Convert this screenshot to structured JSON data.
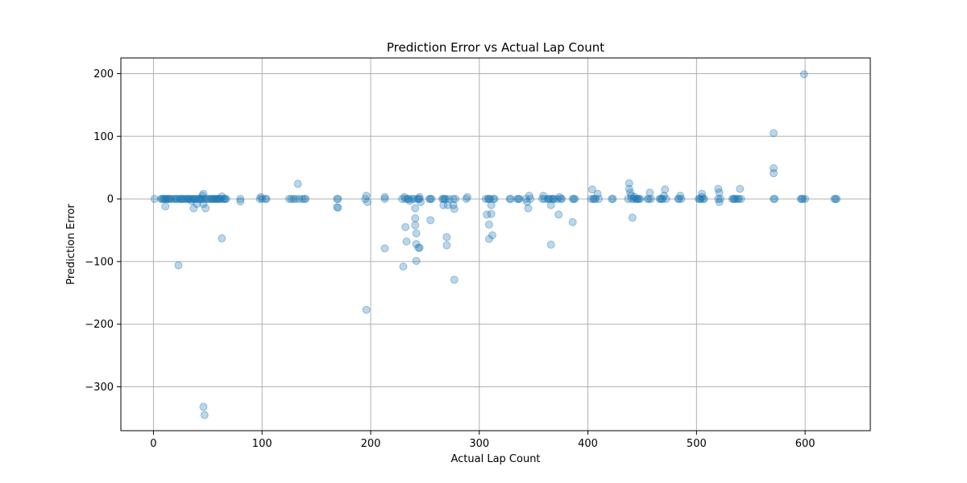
{
  "chart_data": {
    "type": "scatter",
    "title": "Prediction Error vs Actual Lap Count",
    "xlabel": "Actual Lap Count",
    "ylabel": "Prediction Error",
    "xlim": [
      -30,
      660
    ],
    "ylim": [
      -370,
      225
    ],
    "xticks": [
      0,
      100,
      200,
      300,
      400,
      500,
      600
    ],
    "yticks": [
      -300,
      -200,
      -100,
      0,
      100,
      200
    ],
    "grid": true,
    "point_color": "#1f77b4",
    "point_opacity": 0.3,
    "points": [
      [
        1,
        0
      ],
      [
        7,
        0
      ],
      [
        8,
        0
      ],
      [
        9,
        0
      ],
      [
        10,
        0
      ],
      [
        11,
        0
      ],
      [
        11,
        -12
      ],
      [
        12,
        0
      ],
      [
        13,
        0
      ],
      [
        14,
        0
      ],
      [
        15,
        0
      ],
      [
        16,
        0
      ],
      [
        18,
        0
      ],
      [
        20,
        0
      ],
      [
        21,
        0
      ],
      [
        22,
        0
      ],
      [
        23,
        -106
      ],
      [
        24,
        0
      ],
      [
        25,
        0
      ],
      [
        26,
        0
      ],
      [
        27,
        0
      ],
      [
        28,
        0
      ],
      [
        30,
        0
      ],
      [
        31,
        0
      ],
      [
        32,
        0
      ],
      [
        33,
        0
      ],
      [
        34,
        0
      ],
      [
        35,
        -3
      ],
      [
        36,
        0
      ],
      [
        37,
        0
      ],
      [
        37,
        -15
      ],
      [
        38,
        0
      ],
      [
        39,
        0
      ],
      [
        40,
        -8
      ],
      [
        41,
        0
      ],
      [
        42,
        0
      ],
      [
        43,
        0
      ],
      [
        44,
        0
      ],
      [
        45,
        0
      ],
      [
        45,
        5
      ],
      [
        46,
        8
      ],
      [
        46,
        -8
      ],
      [
        46,
        -332
      ],
      [
        47,
        -345
      ],
      [
        47,
        0
      ],
      [
        48,
        -15
      ],
      [
        49,
        0
      ],
      [
        50,
        0
      ],
      [
        52,
        0
      ],
      [
        53,
        0
      ],
      [
        54,
        0
      ],
      [
        55,
        0
      ],
      [
        56,
        0
      ],
      [
        57,
        0
      ],
      [
        58,
        0
      ],
      [
        59,
        0
      ],
      [
        60,
        0
      ],
      [
        61,
        0
      ],
      [
        62,
        0
      ],
      [
        63,
        4
      ],
      [
        63,
        -63
      ],
      [
        64,
        0
      ],
      [
        65,
        0
      ],
      [
        66,
        0
      ],
      [
        67,
        0
      ],
      [
        80,
        0
      ],
      [
        80,
        -4
      ],
      [
        98,
        0
      ],
      [
        99,
        3
      ],
      [
        100,
        0
      ],
      [
        103,
        0
      ],
      [
        104,
        0
      ],
      [
        125,
        0
      ],
      [
        127,
        0
      ],
      [
        129,
        0
      ],
      [
        131,
        0
      ],
      [
        133,
        24
      ],
      [
        134,
        0
      ],
      [
        137,
        0
      ],
      [
        139,
        0
      ],
      [
        140,
        0
      ],
      [
        169,
        0
      ],
      [
        169,
        -13
      ],
      [
        170,
        -14
      ],
      [
        170,
        0
      ],
      [
        195,
        0
      ],
      [
        196,
        5
      ],
      [
        196,
        -177
      ],
      [
        197,
        -5
      ],
      [
        213,
        0
      ],
      [
        213,
        3
      ],
      [
        213,
        -79
      ],
      [
        229,
        0
      ],
      [
        230,
        -108
      ],
      [
        231,
        3
      ],
      [
        232,
        0
      ],
      [
        232,
        -45
      ],
      [
        233,
        -68
      ],
      [
        234,
        0
      ],
      [
        235,
        0
      ],
      [
        236,
        -3
      ],
      [
        238,
        0
      ],
      [
        240,
        0
      ],
      [
        241,
        -31
      ],
      [
        241,
        -42
      ],
      [
        241,
        -15
      ],
      [
        242,
        -55
      ],
      [
        242,
        -72
      ],
      [
        242,
        -99
      ],
      [
        243,
        0
      ],
      [
        244,
        0
      ],
      [
        244,
        -78
      ],
      [
        245,
        3
      ],
      [
        245,
        -78
      ],
      [
        245,
        0
      ],
      [
        246,
        -5
      ],
      [
        254,
        0
      ],
      [
        255,
        0
      ],
      [
        255,
        -34
      ],
      [
        256,
        0
      ],
      [
        266,
        0
      ],
      [
        267,
        0
      ],
      [
        267,
        -10
      ],
      [
        268,
        0
      ],
      [
        269,
        0
      ],
      [
        270,
        -61
      ],
      [
        270,
        -74
      ],
      [
        271,
        -10
      ],
      [
        272,
        0
      ],
      [
        276,
        0
      ],
      [
        276,
        -10
      ],
      [
        277,
        -16
      ],
      [
        277,
        -129
      ],
      [
        278,
        0
      ],
      [
        288,
        0
      ],
      [
        289,
        3
      ],
      [
        306,
        0
      ],
      [
        307,
        -25
      ],
      [
        308,
        0
      ],
      [
        309,
        0
      ],
      [
        309,
        -41
      ],
      [
        309,
        -64
      ],
      [
        310,
        0
      ],
      [
        311,
        -10
      ],
      [
        311,
        -24
      ],
      [
        312,
        -58
      ],
      [
        313,
        0
      ],
      [
        314,
        0
      ],
      [
        328,
        0
      ],
      [
        329,
        0
      ],
      [
        335,
        0
      ],
      [
        336,
        0
      ],
      [
        337,
        0
      ],
      [
        343,
        0
      ],
      [
        344,
        -5
      ],
      [
        345,
        -15
      ],
      [
        346,
        5
      ],
      [
        347,
        0
      ],
      [
        358,
        0
      ],
      [
        359,
        5
      ],
      [
        360,
        0
      ],
      [
        363,
        0
      ],
      [
        364,
        0
      ],
      [
        365,
        0
      ],
      [
        366,
        -10
      ],
      [
        366,
        -73
      ],
      [
        367,
        0
      ],
      [
        368,
        0
      ],
      [
        369,
        0
      ],
      [
        372,
        0
      ],
      [
        373,
        -25
      ],
      [
        374,
        3
      ],
      [
        375,
        0
      ],
      [
        376,
        0
      ],
      [
        386,
        0
      ],
      [
        386,
        -37
      ],
      [
        387,
        0
      ],
      [
        388,
        0
      ],
      [
        403,
        0
      ],
      [
        404,
        15
      ],
      [
        405,
        0
      ],
      [
        406,
        0
      ],
      [
        407,
        0
      ],
      [
        409,
        8
      ],
      [
        410,
        0
      ],
      [
        422,
        0
      ],
      [
        423,
        0
      ],
      [
        437,
        0
      ],
      [
        438,
        25
      ],
      [
        438,
        16
      ],
      [
        439,
        10
      ],
      [
        440,
        5
      ],
      [
        440,
        0
      ],
      [
        441,
        -30
      ],
      [
        442,
        0
      ],
      [
        443,
        3
      ],
      [
        444,
        0
      ],
      [
        445,
        0
      ],
      [
        446,
        0
      ],
      [
        447,
        0
      ],
      [
        448,
        0
      ],
      [
        455,
        0
      ],
      [
        456,
        0
      ],
      [
        457,
        10
      ],
      [
        458,
        0
      ],
      [
        466,
        0
      ],
      [
        467,
        0
      ],
      [
        468,
        0
      ],
      [
        469,
        0
      ],
      [
        470,
        5
      ],
      [
        471,
        15
      ],
      [
        472,
        0
      ],
      [
        483,
        0
      ],
      [
        484,
        0
      ],
      [
        485,
        5
      ],
      [
        486,
        0
      ],
      [
        502,
        0
      ],
      [
        503,
        0
      ],
      [
        504,
        0
      ],
      [
        505,
        8
      ],
      [
        505,
        3
      ],
      [
        506,
        0
      ],
      [
        507,
        0
      ],
      [
        520,
        0
      ],
      [
        520,
        16
      ],
      [
        521,
        10
      ],
      [
        521,
        -5
      ],
      [
        522,
        0
      ],
      [
        533,
        0
      ],
      [
        534,
        0
      ],
      [
        535,
        0
      ],
      [
        536,
        0
      ],
      [
        538,
        0
      ],
      [
        539,
        0
      ],
      [
        540,
        16
      ],
      [
        541,
        0
      ],
      [
        571,
        0
      ],
      [
        571,
        105
      ],
      [
        571,
        49
      ],
      [
        571,
        41
      ],
      [
        572,
        0
      ],
      [
        596,
        0
      ],
      [
        597,
        0
      ],
      [
        598,
        0
      ],
      [
        599,
        199
      ],
      [
        600,
        0
      ],
      [
        627,
        0
      ],
      [
        628,
        0
      ],
      [
        629,
        0
      ]
    ]
  }
}
